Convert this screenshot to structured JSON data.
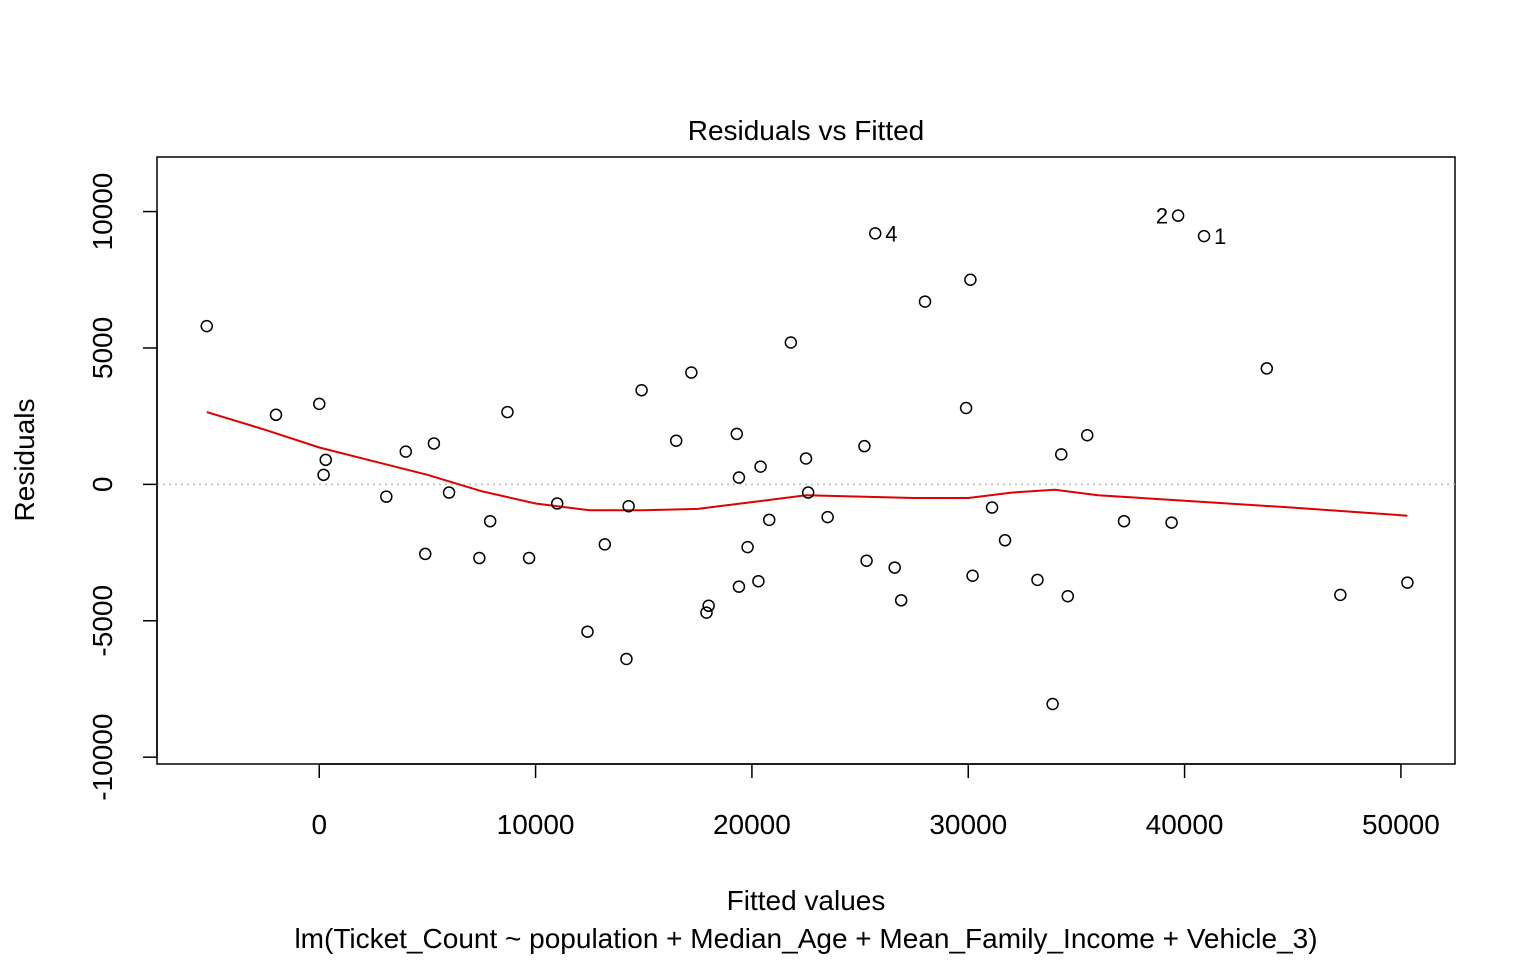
{
  "chart_data": {
    "type": "scatter",
    "title": "Residuals vs Fitted",
    "xlabel": "Fitted values",
    "subtitle": "lm(Ticket_Count ~ population + Median_Age + Mean_Family_Income + Vehicle_3)",
    "ylabel": "Residuals",
    "xlim": [
      -7500,
      52500
    ],
    "ylim": [
      -10250,
      12000
    ],
    "x_ticks": [
      0,
      10000,
      20000,
      30000,
      40000,
      50000
    ],
    "x_tick_labels": [
      "0",
      "10000",
      "20000",
      "30000",
      "40000",
      "50000"
    ],
    "y_ticks": [
      -10000,
      -5000,
      0,
      5000,
      10000
    ],
    "y_tick_labels": [
      "-10000",
      "-5000",
      "0",
      "5000",
      "10000"
    ],
    "reference_line": {
      "y": 0,
      "style": "dotted",
      "color": "#bdbdbd"
    },
    "smoother_color": "#e00000",
    "points": [
      {
        "x": -5200,
        "y": 5800
      },
      {
        "x": -2000,
        "y": 2550
      },
      {
        "x": 0,
        "y": 2950
      },
      {
        "x": 300,
        "y": 900
      },
      {
        "x": 200,
        "y": 350
      },
      {
        "x": 3100,
        "y": -450
      },
      {
        "x": 4000,
        "y": 1200
      },
      {
        "x": 4900,
        "y": -2550
      },
      {
        "x": 5300,
        "y": 1500
      },
      {
        "x": 6000,
        "y": -300
      },
      {
        "x": 7400,
        "y": -2700
      },
      {
        "x": 7900,
        "y": -1350
      },
      {
        "x": 8700,
        "y": 2650
      },
      {
        "x": 9700,
        "y": -2700
      },
      {
        "x": 11000,
        "y": -700
      },
      {
        "x": 12400,
        "y": -5400
      },
      {
        "x": 13200,
        "y": -2200
      },
      {
        "x": 14200,
        "y": -6400
      },
      {
        "x": 14300,
        "y": -800
      },
      {
        "x": 14900,
        "y": 3450
      },
      {
        "x": 16500,
        "y": 1600
      },
      {
        "x": 17200,
        "y": 4100
      },
      {
        "x": 17900,
        "y": -4700
      },
      {
        "x": 18000,
        "y": -4450
      },
      {
        "x": 19300,
        "y": 1850
      },
      {
        "x": 19400,
        "y": -3750
      },
      {
        "x": 19400,
        "y": 250
      },
      {
        "x": 19800,
        "y": -2300
      },
      {
        "x": 20300,
        "y": -3550
      },
      {
        "x": 20400,
        "y": 650
      },
      {
        "x": 20800,
        "y": -1300
      },
      {
        "x": 21800,
        "y": 5200
      },
      {
        "x": 22500,
        "y": 950
      },
      {
        "x": 22600,
        "y": -300
      },
      {
        "x": 23500,
        "y": -1200
      },
      {
        "x": 25200,
        "y": 1400
      },
      {
        "x": 25300,
        "y": -2800
      },
      {
        "x": 25700,
        "y": 9200,
        "label": "4"
      },
      {
        "x": 26600,
        "y": -3050
      },
      {
        "x": 26900,
        "y": -4250
      },
      {
        "x": 28000,
        "y": 6700
      },
      {
        "x": 29900,
        "y": 2800
      },
      {
        "x": 30100,
        "y": 7500
      },
      {
        "x": 30200,
        "y": -3350
      },
      {
        "x": 31100,
        "y": -850
      },
      {
        "x": 31700,
        "y": -2050
      },
      {
        "x": 33200,
        "y": -3500
      },
      {
        "x": 33900,
        "y": -8050
      },
      {
        "x": 34300,
        "y": 1100
      },
      {
        "x": 34600,
        "y": -4100
      },
      {
        "x": 35500,
        "y": 1800
      },
      {
        "x": 37200,
        "y": -1350
      },
      {
        "x": 39400,
        "y": -1400
      },
      {
        "x": 39700,
        "y": 9850,
        "label": "2"
      },
      {
        "x": 40900,
        "y": 9100,
        "label": "1"
      },
      {
        "x": 43800,
        "y": 4250
      },
      {
        "x": 47200,
        "y": -4050
      },
      {
        "x": 50300,
        "y": -3600
      }
    ],
    "smoother": [
      {
        "x": -5200,
        "y": 2650
      },
      {
        "x": -2500,
        "y": 2000
      },
      {
        "x": 0,
        "y": 1350
      },
      {
        "x": 2500,
        "y": 850
      },
      {
        "x": 5000,
        "y": 350
      },
      {
        "x": 7500,
        "y": -250
      },
      {
        "x": 10000,
        "y": -700
      },
      {
        "x": 12500,
        "y": -950
      },
      {
        "x": 15000,
        "y": -950
      },
      {
        "x": 17500,
        "y": -900
      },
      {
        "x": 20000,
        "y": -650
      },
      {
        "x": 22500,
        "y": -400
      },
      {
        "x": 25000,
        "y": -450
      },
      {
        "x": 27500,
        "y": -500
      },
      {
        "x": 30000,
        "y": -500
      },
      {
        "x": 32000,
        "y": -300
      },
      {
        "x": 34000,
        "y": -200
      },
      {
        "x": 36000,
        "y": -400
      },
      {
        "x": 40000,
        "y": -600
      },
      {
        "x": 45000,
        "y": -850
      },
      {
        "x": 50300,
        "y": -1150
      }
    ]
  }
}
